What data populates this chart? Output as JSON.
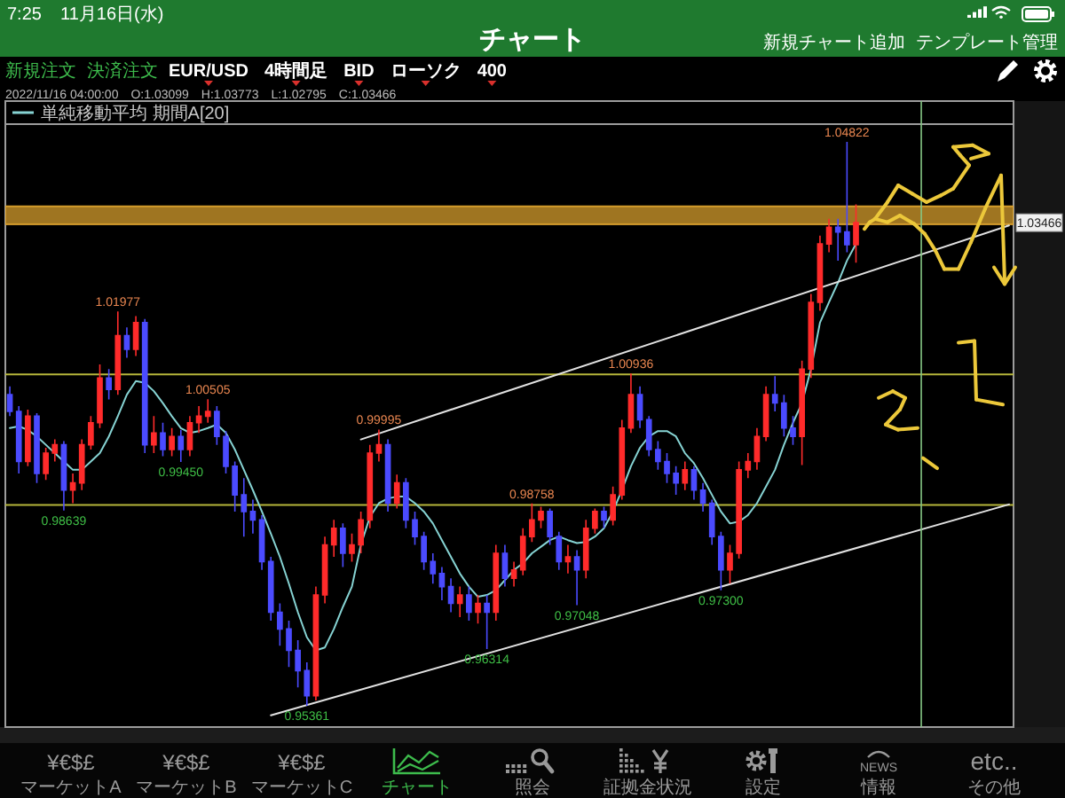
{
  "chart_data": {
    "type": "candlestick",
    "title": "チャート",
    "categories": [
      null,
      null,
      null,
      null,
      null,
      null,
      null,
      null,
      null,
      null,
      null,
      null,
      null,
      null,
      null,
      null,
      null,
      null,
      null,
      null,
      null,
      null,
      null,
      null,
      null,
      null,
      null,
      null,
      null,
      null,
      null,
      null,
      null,
      null,
      null,
      null,
      null,
      null,
      null,
      null,
      null,
      null,
      null,
      null,
      null,
      null,
      null,
      null,
      null,
      null,
      null,
      null,
      null,
      null,
      null,
      null,
      null,
      null,
      null,
      null,
      null,
      null,
      null,
      null,
      null,
      null,
      null,
      null,
      null,
      null,
      null,
      null,
      null,
      null,
      null,
      null,
      null,
      null,
      null,
      null,
      null,
      null,
      null,
      null,
      null,
      null,
      null,
      null,
      null,
      null,
      null,
      null,
      null,
      null,
      null,
      null,
      null,
      null,
      null,
      null,
      null,
      null,
      null,
      null,
      null,
      null,
      null,
      null,
      null,
      null,
      null,
      null
    ],
    "ohlc": [
      [
        1.0058,
        1.0072,
        1.0022,
        1.003
      ],
      [
        1.003,
        1.0039,
        0.9926,
        0.9946
      ],
      [
        0.9946,
        1.0033,
        0.9938,
        1.0022
      ],
      [
        1.0022,
        1.0027,
        0.991,
        0.9926
      ],
      [
        0.9926,
        0.9969,
        0.9915,
        0.996
      ],
      [
        0.996,
        0.9983,
        0.9946,
        0.9974
      ],
      [
        0.9974,
        0.998,
        0.98639,
        0.9898
      ],
      [
        0.9898,
        0.9926,
        0.9876,
        0.991
      ],
      [
        0.991,
        0.9983,
        0.9898,
        0.9974
      ],
      [
        0.9974,
        1.0022,
        0.9966,
        1.0011
      ],
      [
        1.0011,
        1.0109,
        1.0002,
        1.0086
      ],
      [
        1.0086,
        1.0101,
        1.005,
        1.0067
      ],
      [
        1.0067,
        1.01977,
        1.0058,
        1.0157
      ],
      [
        1.0157,
        1.0171,
        1.012,
        1.0134
      ],
      [
        1.0134,
        1.019,
        1.0123,
        1.0179
      ],
      [
        1.0179,
        1.0185,
        0.996,
        0.9974
      ],
      [
        0.9974,
        1.0022,
        0.996,
        0.9994
      ],
      [
        0.9994,
        1.0011,
        0.9955,
        0.9966
      ],
      [
        0.9966,
        1.0002,
        0.9955,
        0.9988
      ],
      [
        0.9988,
        0.9999,
        0.9945,
        0.9966
      ],
      [
        0.9966,
        1.0022,
        0.9955,
        1.0011
      ],
      [
        1.0011,
        1.0039,
        0.9994,
        1.0022
      ],
      [
        1.0022,
        1.00505,
        1.0011,
        1.003
      ],
      [
        1.003,
        1.0039,
        0.9974,
        0.9988
      ],
      [
        0.9988,
        0.9997,
        0.9926,
        0.9938
      ],
      [
        0.9938,
        0.9946,
        0.9862,
        0.989
      ],
      [
        0.989,
        0.9918,
        0.982,
        0.9862
      ],
      [
        0.9862,
        0.9882,
        0.9825,
        0.9848
      ],
      [
        0.9848,
        0.9856,
        0.9764,
        0.9778
      ],
      [
        0.9778,
        0.9786,
        0.9679,
        0.9693
      ],
      [
        0.9693,
        0.9708,
        0.9637,
        0.9665
      ],
      [
        0.9665,
        0.9679,
        0.9601,
        0.9629
      ],
      [
        0.9629,
        0.9646,
        0.9567,
        0.9595
      ],
      [
        0.9595,
        0.9609,
        0.95361,
        0.9553
      ],
      [
        0.9553,
        0.9736,
        0.9545,
        0.9722
      ],
      [
        0.9722,
        0.982,
        0.9708,
        0.9806
      ],
      [
        0.9806,
        0.9848,
        0.9786,
        0.9834
      ],
      [
        0.9834,
        0.9842,
        0.9769,
        0.9792
      ],
      [
        0.9792,
        0.9825,
        0.9778,
        0.9806
      ],
      [
        0.9806,
        0.9862,
        0.9792,
        0.9848
      ],
      [
        0.9848,
        0.9974,
        0.9834,
        0.996
      ],
      [
        0.996,
        0.99995,
        0.9946,
        0.9974
      ],
      [
        0.9974,
        0.9983,
        0.9862,
        0.9876
      ],
      [
        0.9876,
        0.9924,
        0.9867,
        0.991
      ],
      [
        0.991,
        0.9918,
        0.9834,
        0.9848
      ],
      [
        0.9848,
        0.9862,
        0.9806,
        0.982
      ],
      [
        0.982,
        0.9828,
        0.9764,
        0.9778
      ],
      [
        0.9778,
        0.9792,
        0.9741,
        0.9758
      ],
      [
        0.9758,
        0.9769,
        0.9713,
        0.9736
      ],
      [
        0.9736,
        0.975,
        0.9693,
        0.9708
      ],
      [
        0.9708,
        0.9736,
        0.9685,
        0.9722
      ],
      [
        0.9722,
        0.9736,
        0.9679,
        0.9693
      ],
      [
        0.9693,
        0.9722,
        0.9674,
        0.9708
      ],
      [
        0.9708,
        0.9722,
        0.96314,
        0.9693
      ],
      [
        0.9693,
        0.9806,
        0.9679,
        0.9792
      ],
      [
        0.9792,
        0.9806,
        0.9736,
        0.975
      ],
      [
        0.975,
        0.9778,
        0.9736,
        0.9764
      ],
      [
        0.9764,
        0.9834,
        0.9755,
        0.982
      ],
      [
        0.982,
        0.98758,
        0.9811,
        0.9848
      ],
      [
        0.9848,
        0.987,
        0.9834,
        0.9862
      ],
      [
        0.9862,
        0.9867,
        0.9806,
        0.982
      ],
      [
        0.982,
        0.9828,
        0.9764,
        0.9778
      ],
      [
        0.9778,
        0.9806,
        0.9758,
        0.9786
      ],
      [
        0.9786,
        0.9797,
        0.97048,
        0.9764
      ],
      [
        0.9764,
        0.9848,
        0.975,
        0.9834
      ],
      [
        0.9834,
        0.9867,
        0.9825,
        0.9862
      ],
      [
        0.9862,
        0.987,
        0.9834,
        0.9848
      ],
      [
        0.9848,
        0.9904,
        0.9839,
        0.989
      ],
      [
        0.989,
        1.0016,
        0.9882,
        1.0002
      ],
      [
        1.0002,
        1.00936,
        0.9994,
        1.0058
      ],
      [
        1.0058,
        1.0072,
        1.0002,
        1.0016
      ],
      [
        1.0016,
        1.0022,
        0.9955,
        0.9966
      ],
      [
        0.9966,
        0.998,
        0.9932,
        0.9946
      ],
      [
        0.9946,
        0.996,
        0.991,
        0.9926
      ],
      [
        0.9926,
        0.9938,
        0.989,
        0.991
      ],
      [
        0.991,
        0.9946,
        0.9898,
        0.9932
      ],
      [
        0.9932,
        0.9938,
        0.9882,
        0.9898
      ],
      [
        0.9898,
        0.991,
        0.9862,
        0.9876
      ],
      [
        0.9876,
        0.9882,
        0.9806,
        0.982
      ],
      [
        0.982,
        0.9828,
        0.973,
        0.9764
      ],
      [
        0.9764,
        0.9806,
        0.9741,
        0.9792
      ],
      [
        0.9792,
        0.9946,
        0.9783,
        0.9932
      ],
      [
        0.9932,
        0.996,
        0.9918,
        0.9946
      ],
      [
        0.9946,
        1.0002,
        0.9932,
        0.9988
      ],
      [
        0.9988,
        1.0072,
        0.998,
        1.0058
      ],
      [
        1.0058,
        1.0089,
        1.003,
        1.0044
      ],
      [
        1.0044,
        1.0058,
        0.9988,
        1.0002
      ],
      [
        1.0002,
        1.0022,
        0.9974,
        0.9988
      ],
      [
        0.9988,
        1.0115,
        0.994,
        1.0101
      ],
      [
        1.0101,
        1.0227,
        1.0086,
        1.0213
      ],
      [
        1.0213,
        1.0325,
        1.0199,
        1.0311
      ],
      [
        1.0311,
        1.0353,
        1.0297,
        1.0339
      ],
      [
        1.0339,
        1.0353,
        1.0283,
        1.0331
      ],
      [
        1.0331,
        1.04822,
        1.0297,
        1.03099
      ],
      [
        1.03099,
        1.03773,
        1.02795,
        1.03466
      ],
      null,
      null,
      null,
      null,
      null,
      null,
      null,
      null,
      null,
      null,
      null,
      null,
      null,
      null,
      null,
      null,
      null
    ],
    "colors": [
      "#4b4bff",
      "#4b4bff",
      "#ff2b2b",
      "#4b4bff",
      "#ff2b2b",
      "#ff2b2b",
      "#4b4bff",
      "#ff2b2b",
      "#ff2b2b",
      "#ff2b2b",
      "#ff2b2b",
      "#4b4bff",
      "#ff2b2b",
      "#4b4bff",
      "#ff2b2b",
      "#4b4bff",
      "#ff2b2b",
      "#4b4bff",
      "#ff2b2b",
      "#4b4bff",
      "#ff2b2b",
      "#ff2b2b",
      "#ff2b2b",
      "#4b4bff",
      "#4b4bff",
      "#4b4bff",
      "#4b4bff",
      "#4b4bff",
      "#4b4bff",
      "#4b4bff",
      "#4b4bff",
      "#4b4bff",
      "#4b4bff",
      "#4b4bff",
      "#ff2b2b",
      "#ff2b2b",
      "#ff2b2b",
      "#4b4bff",
      "#ff2b2b",
      "#ff2b2b",
      "#ff2b2b",
      "#ff2b2b",
      "#4b4bff",
      "#ff2b2b",
      "#4b4bff",
      "#4b4bff",
      "#4b4bff",
      "#4b4bff",
      "#4b4bff",
      "#4b4bff",
      "#ff2b2b",
      "#4b4bff",
      "#ff2b2b",
      "#4b4bff",
      "#ff2b2b",
      "#4b4bff",
      "#ff2b2b",
      "#ff2b2b",
      "#ff2b2b",
      "#ff2b2b",
      "#4b4bff",
      "#4b4bff",
      "#ff2b2b",
      "#4b4bff",
      "#ff2b2b",
      "#ff2b2b",
      "#4b4bff",
      "#ff2b2b",
      "#ff2b2b",
      "#ff2b2b",
      "#4b4bff",
      "#4b4bff",
      "#4b4bff",
      "#4b4bff",
      "#4b4bff",
      "#ff2b2b",
      "#4b4bff",
      "#4b4bff",
      "#4b4bff",
      "#4b4bff",
      "#ff2b2b",
      "#ff2b2b",
      "#ff2b2b",
      "#ff2b2b",
      "#ff2b2b",
      "#4b4bff",
      "#4b4bff",
      "#4b4bff",
      "#ff2b2b",
      "#ff2b2b",
      "#ff2b2b",
      "#ff2b2b",
      "#4b4bff",
      "#4b4bff",
      "#ff2b2b",
      null,
      null,
      null,
      null,
      null,
      null,
      null,
      null,
      null,
      null,
      null,
      null,
      null,
      null,
      null,
      null,
      null
    ],
    "series": [
      {
        "type": "line",
        "name": "単純移動平均 期間A[20]",
        "color": "#86d3d3",
        "values": [
          1.0002,
          1.0005,
          0.9999,
          0.9988,
          0.9974,
          0.996,
          0.9946,
          0.9932,
          0.9932,
          0.9946,
          0.996,
          0.9988,
          1.0022,
          1.0058,
          1.0081,
          1.0078,
          1.0064,
          1.0044,
          1.0022,
          1.0002,
          0.9994,
          0.9997,
          1.0002,
          1.0008,
          0.9994,
          0.9966,
          0.9932,
          0.9898,
          0.9862,
          0.9825,
          0.9786,
          0.9741,
          0.9693,
          0.9651,
          0.9629,
          0.9634,
          0.9665,
          0.9702,
          0.9736,
          0.9806,
          0.9853,
          0.9876,
          0.9884,
          0.9887,
          0.9887,
          0.9876,
          0.9862,
          0.9842,
          0.9814,
          0.9786,
          0.9758,
          0.9736,
          0.9719,
          0.9722,
          0.973,
          0.9747,
          0.9764,
          0.9775,
          0.9792,
          0.9803,
          0.9814,
          0.982,
          0.9814,
          0.9809,
          0.9811,
          0.982,
          0.9834,
          0.9862,
          0.9898,
          0.9938,
          0.9969,
          0.9988,
          0.9997,
          0.9997,
          0.9988,
          0.996,
          0.9943,
          0.9918,
          0.989,
          0.9862,
          0.9842,
          0.9845,
          0.9856,
          0.9876,
          0.9904,
          0.9932,
          0.9974,
          1.0011,
          1.0044,
          1.0101,
          1.0179,
          1.0213,
          1.0246,
          1.0283,
          1.0311,
          null,
          null,
          null,
          null,
          null,
          null,
          null,
          null,
          null,
          null,
          null,
          null,
          null,
          null,
          null,
          null,
          null
        ]
      },
      {
        "type": "line",
        "color": "#e2e2e2",
        "values": [
          null,
          null,
          null,
          null,
          null,
          null,
          null,
          null,
          null,
          null,
          null,
          null,
          null,
          null,
          null,
          null,
          null,
          null,
          null,
          null,
          null,
          null,
          null,
          null,
          null,
          null,
          null,
          null,
          null,
          null,
          null,
          null,
          null,
          null,
          null,
          null,
          null,
          null,
          null,
          0.9983,
          null,
          null,
          null,
          null,
          null,
          null,
          null,
          null,
          null,
          null,
          null,
          null,
          null,
          null,
          null,
          null,
          null,
          null,
          null,
          null,
          null,
          null,
          null,
          null,
          null,
          null,
          null,
          null,
          null,
          null,
          null,
          null,
          null,
          null,
          null,
          null,
          null,
          null,
          null,
          null,
          null,
          null,
          null,
          null,
          null,
          null,
          null,
          null,
          null,
          null,
          null,
          null,
          null,
          null,
          null,
          null,
          null,
          null,
          null,
          null,
          null,
          null,
          null,
          null,
          null,
          null,
          null,
          null,
          null,
          null,
          null,
          1.0342
        ]
      },
      {
        "type": "line",
        "color": "#e2e2e2",
        "values": [
          null,
          null,
          null,
          null,
          null,
          null,
          null,
          null,
          null,
          null,
          null,
          null,
          null,
          null,
          null,
          null,
          null,
          null,
          null,
          null,
          null,
          null,
          null,
          null,
          null,
          null,
          null,
          null,
          null,
          0.952,
          null,
          null,
          null,
          null,
          null,
          null,
          null,
          null,
          null,
          null,
          null,
          null,
          null,
          null,
          null,
          null,
          null,
          null,
          null,
          null,
          null,
          null,
          null,
          null,
          null,
          null,
          null,
          null,
          null,
          null,
          null,
          null,
          null,
          null,
          null,
          null,
          null,
          null,
          null,
          null,
          null,
          null,
          null,
          null,
          null,
          null,
          null,
          null,
          null,
          null,
          null,
          null,
          null,
          null,
          null,
          null,
          null,
          null,
          null,
          null,
          null,
          null,
          null,
          null,
          null,
          null,
          null,
          null,
          null,
          null,
          null,
          null,
          null,
          null,
          null,
          null,
          null,
          null,
          null,
          null,
          null,
          0.9874
        ]
      }
    ],
    "ref_lines": [
      {
        "axis": "y",
        "value": 1.0092,
        "color": "#b5b53a"
      },
      {
        "axis": "y",
        "value": 0.9873,
        "color": "#b5b53a"
      }
    ],
    "bands": [
      {
        "axis": "y",
        "from": 1.0344,
        "to": 1.0374,
        "color": "#d49c2c"
      }
    ],
    "legend": "top left",
    "tick_labels": false,
    "annotations": [
      "7:25",
      "11月16日(水)",
      "新規チャート追加",
      "テンプレート管理",
      "新規注文",
      "決済注文",
      "EUR/USD",
      "4時間足",
      "BID",
      "ローソク",
      "400",
      "2022/11/16 04:00:00",
      "O:1.03099",
      "H:1.03773",
      "L:1.02795",
      "C:1.03466",
      "¥€$£",
      "マーケットA",
      "¥€$£",
      "マーケットB",
      "¥€$£",
      "マーケットC",
      "チャート",
      "照会",
      "証拠金状況",
      "設定",
      "NEWS",
      "情報",
      "etc..",
      "その他",
      {
        "text": "1.04822",
        "y": 1.04822
      },
      {
        "text": "1.01977",
        "y": 1.01977
      },
      {
        "text": "1.00505",
        "y": 1.00505
      },
      {
        "text": "0.99450",
        "y": 0.9945
      },
      {
        "text": "0.98639",
        "y": 0.98639
      },
      {
        "text": "0.99995",
        "y": 0.99995
      },
      {
        "text": "0.98758",
        "y": 0.98758
      },
      {
        "text": "1.00936",
        "y": 1.00936
      },
      {
        "text": "0.97048",
        "y": 0.97048
      },
      {
        "text": "0.96314",
        "y": 0.96314
      },
      {
        "text": "0.97300",
        "y": 0.973
      },
      {
        "text": "0.95361",
        "y": 0.95361
      },
      {
        "text": "1.03466",
        "y": 1.03466
      }
    ]
  }
}
